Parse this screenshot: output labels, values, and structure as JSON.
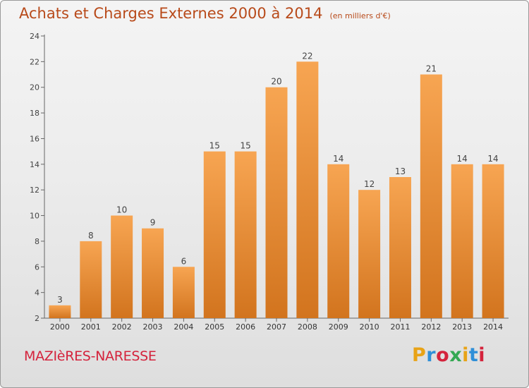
{
  "chart_data": {
    "type": "bar",
    "title": "Achats et Charges Externes 2000 à 2014",
    "subtitle": "(en milliers d'€)",
    "categories": [
      "2000",
      "2001",
      "2002",
      "2003",
      "2004",
      "2005",
      "2006",
      "2007",
      "2008",
      "2009",
      "2010",
      "2011",
      "2012",
      "2013",
      "2014"
    ],
    "values": [
      3,
      8,
      10,
      9,
      6,
      15,
      15,
      20,
      22,
      14,
      12,
      13,
      21,
      14,
      14
    ],
    "ylim": [
      2,
      24
    ],
    "yticks": [
      2,
      4,
      6,
      8,
      10,
      12,
      14,
      16,
      18,
      20,
      22,
      24
    ],
    "grid": false,
    "bar_color_top": "#f7a552",
    "bar_color_bottom": "#d2741e"
  },
  "footer": {
    "commune": "MAZIèRES-NARESSE",
    "brand": "Proxiti",
    "brand_colors": [
      "#e8a317",
      "#2f8fd8",
      "#d4233c",
      "#34a853",
      "#e8a317",
      "#2f8fd8",
      "#d4233c"
    ]
  }
}
